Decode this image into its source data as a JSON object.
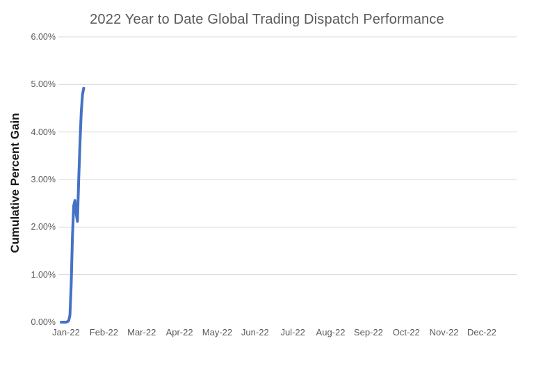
{
  "chart_data": {
    "type": "line",
    "title": "2022 Year to Date Global Trading Dispatch Performance",
    "xlabel": "",
    "ylabel": "Cumulative Percent Gain",
    "ylim": [
      0,
      6
    ],
    "y_tick_step": 1,
    "y_ticks": [
      {
        "value": 0,
        "label": "0.00%"
      },
      {
        "value": 1,
        "label": "1.00%"
      },
      {
        "value": 2,
        "label": "2.00%"
      },
      {
        "value": 3,
        "label": "3.00%"
      },
      {
        "value": 4,
        "label": "4.00%"
      },
      {
        "value": 5,
        "label": "5.00%"
      },
      {
        "value": 6,
        "label": "6.00%"
      }
    ],
    "x_ticks": [
      "Jan-22",
      "Feb-22",
      "Mar-22",
      "Apr-22",
      "May-22",
      "Jun-22",
      "Jul-22",
      "Aug-22",
      "Sep-22",
      "Oct-22",
      "Nov-22",
      "Dec-22"
    ],
    "x_domain": "days of 2022 (Jan 1 = day 1, Dec 31 = day 365)",
    "grid": "horizontal gridlines at 1.00% through 6.00%, no legend",
    "legend_position": "none",
    "line_color": "#4472C4",
    "gridline_color": "#D9D9D9",
    "tick_label_color": "#595959",
    "title_color": "#595959",
    "series": [
      {
        "name": "Cumulative Percent Gain",
        "points_day_value_pct": [
          [
            1,
            0.0
          ],
          [
            2,
            0.0
          ],
          [
            3,
            0.0
          ],
          [
            4,
            0.0
          ],
          [
            5,
            0.0
          ],
          [
            6,
            0.01
          ],
          [
            7,
            0.03
          ],
          [
            8,
            0.15
          ],
          [
            9,
            0.8
          ],
          [
            10,
            1.8
          ],
          [
            11,
            2.45
          ],
          [
            12,
            2.56
          ],
          [
            13,
            2.28
          ],
          [
            14,
            2.12
          ],
          [
            15,
            3.0
          ],
          [
            16,
            3.75
          ],
          [
            17,
            4.4
          ],
          [
            18,
            4.78
          ],
          [
            19,
            4.92
          ]
        ],
        "notes_visible_shape": "flat at 0.00% for first few days of Jan, sharp rise to local peak ~2.56%, brief dip to ~2.12%, then sharp rise to ~4.92% where the line ends in mid-January; no data after mid-January"
      }
    ]
  }
}
